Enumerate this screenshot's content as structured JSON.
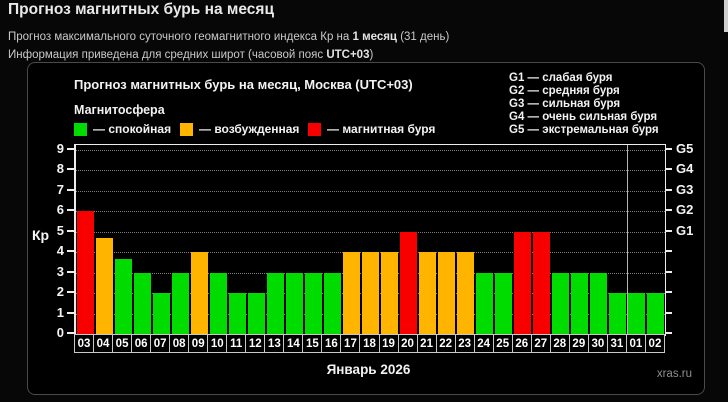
{
  "page": {
    "title": "Прогноз магнитных бурь на месяц",
    "subtitle1": {
      "pre": "Прогноз максимального суточного геомагнитного индекса Кр на ",
      "bold": "1 месяц",
      "post": " (31 день)"
    },
    "subtitle2": {
      "pre": "Информация приведена для средних широт (часовой пояс ",
      "bold": "UTC+03",
      "post": ")"
    }
  },
  "chart": {
    "title": "Прогноз магнитных бурь на месяц, Москва (UTC+03)",
    "legend_title": "Магнитосфера",
    "legend": [
      {
        "state": "calm",
        "label": "— спокойная",
        "color": "#00dc00"
      },
      {
        "state": "excited",
        "label": "— возбужденная",
        "color": "#ffb400"
      },
      {
        "state": "storm",
        "label": "— магнитная буря",
        "color": "#f80000"
      }
    ],
    "g_legend": [
      "G1 — слабая буря",
      "G2 — средняя буря",
      "G3 — сильная буря",
      "G4 — очень сильная буря",
      "G5 — экстремальная буря"
    ],
    "watermark": "xras.ru"
  },
  "chart_data": {
    "type": "bar",
    "title": "Прогноз магнитных бурь на месяц, Москва (UTC+03)",
    "xlabel": "Январь 2026",
    "ylabel": "Кр",
    "ylim": [
      0,
      9
    ],
    "y_ticks": [
      0,
      1,
      2,
      3,
      4,
      5,
      6,
      7,
      8,
      9
    ],
    "right_axis_labels": [
      {
        "level": 5,
        "label": "G1"
      },
      {
        "level": 6,
        "label": "G2"
      },
      {
        "level": 7,
        "label": "G3"
      },
      {
        "level": 8,
        "label": "G4"
      },
      {
        "level": 9,
        "label": "G5"
      }
    ],
    "grid": "horizontal-dotted",
    "legend_position": "top-left-inside-figure",
    "categories": [
      "03",
      "04",
      "05",
      "06",
      "07",
      "08",
      "09",
      "10",
      "11",
      "12",
      "13",
      "14",
      "15",
      "16",
      "17",
      "18",
      "19",
      "20",
      "21",
      "22",
      "23",
      "24",
      "25",
      "26",
      "27",
      "28",
      "29",
      "30",
      "31",
      "01",
      "02"
    ],
    "values": [
      6,
      4.67,
      3.67,
      3,
      2,
      3,
      4,
      3,
      2,
      2,
      3,
      3,
      3,
      3,
      4,
      4,
      4,
      5,
      4,
      4,
      4,
      3,
      3,
      5,
      5,
      3,
      3,
      3,
      2,
      2,
      2
    ],
    "states": [
      "storm",
      "excited",
      "calm",
      "calm",
      "calm",
      "calm",
      "excited",
      "calm",
      "calm",
      "calm",
      "calm",
      "calm",
      "calm",
      "calm",
      "excited",
      "excited",
      "excited",
      "storm",
      "excited",
      "excited",
      "excited",
      "calm",
      "calm",
      "storm",
      "storm",
      "calm",
      "calm",
      "calm",
      "calm",
      "calm",
      "calm"
    ],
    "state_colors": {
      "calm": "#00dc00",
      "excited": "#ffb400",
      "storm": "#f80000"
    },
    "month_separator_after_index": 28
  }
}
